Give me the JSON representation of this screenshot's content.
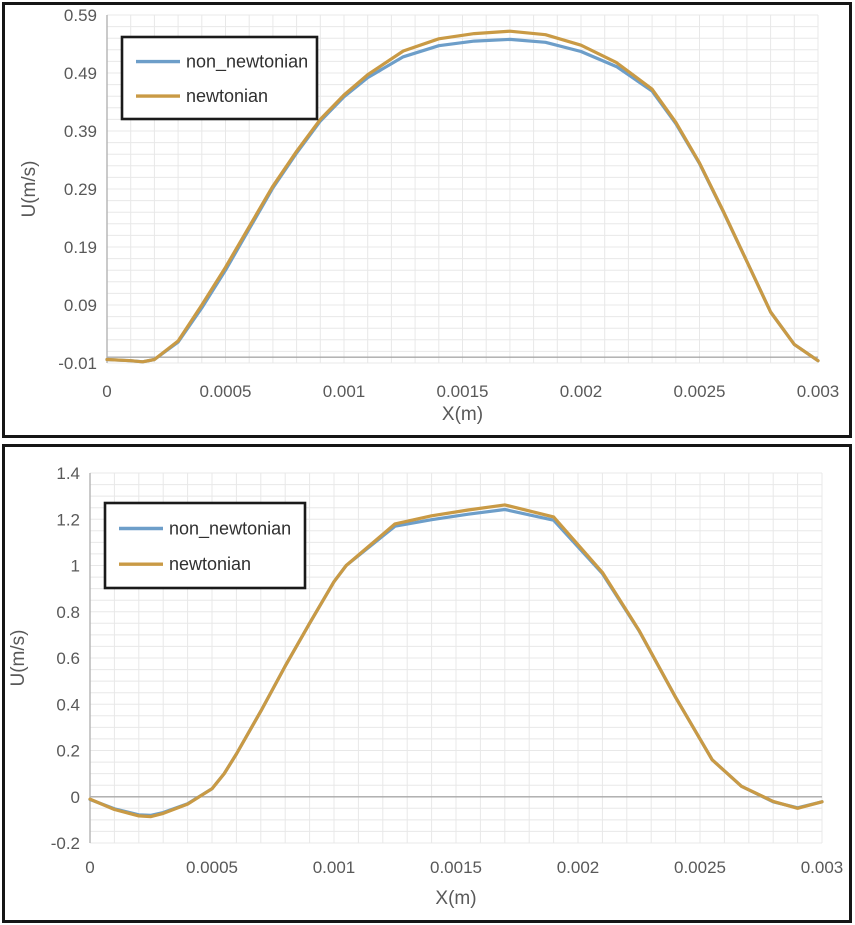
{
  "colors": {
    "non_newtonian": "#6D9EC9",
    "newtonian": "#C99A45",
    "grid": "#E8E8E8",
    "axis_line": "#B3B3B3",
    "zero_line": "#A9A9A9",
    "tick_text": "#595959",
    "legend_text": "#303030",
    "legend_border": "#1a1a1a",
    "panel_border": "#161616",
    "background": "#ffffff"
  },
  "chart_data": [
    {
      "type": "line",
      "title": "",
      "xlabel": "X(m)",
      "ylabel": "U(m/s)",
      "xlim": [
        0,
        0.003
      ],
      "ylim": [
        -0.01,
        0.59
      ],
      "x_tick_labels": [
        "0",
        "0.0005",
        "0.001",
        "0.0015",
        "0.002",
        "0.0025",
        "0.003"
      ],
      "x_tick_values": [
        0,
        0.0005,
        0.001,
        0.0015,
        0.002,
        0.0025,
        0.003
      ],
      "y_tick_labels": [
        "-0.01",
        "0.09",
        "0.19",
        "0.29",
        "0.39",
        "0.49",
        "0.59"
      ],
      "y_tick_values": [
        -0.01,
        0.09,
        0.19,
        0.29,
        0.39,
        0.49,
        0.59
      ],
      "x_minor_step": 0.0001,
      "y_minor_step": 0.02,
      "grid": true,
      "zero_line": 0,
      "legend_position": "inside-top-left",
      "legend_entries": [
        "non_newtonian",
        "newtonian"
      ],
      "series": [
        {
          "name": "non_newtonian",
          "points": [
            [
              0,
              -0.004
            ],
            [
              0.0001,
              -0.006
            ],
            [
              0.00015,
              -0.008
            ],
            [
              0.0002,
              -0.004
            ],
            [
              0.0003,
              0.026
            ],
            [
              0.0004,
              0.085
            ],
            [
              0.0005,
              0.15
            ],
            [
              0.0006,
              0.221
            ],
            [
              0.0007,
              0.292
            ],
            [
              0.0008,
              0.352
            ],
            [
              0.0009,
              0.407
            ],
            [
              0.001,
              0.449
            ],
            [
              0.0011,
              0.482
            ],
            [
              0.00125,
              0.518
            ],
            [
              0.0014,
              0.537
            ],
            [
              0.00155,
              0.545
            ],
            [
              0.0017,
              0.548
            ],
            [
              0.00185,
              0.543
            ],
            [
              0.002,
              0.527
            ],
            [
              0.00215,
              0.501
            ],
            [
              0.0023,
              0.459
            ],
            [
              0.0024,
              0.403
            ],
            [
              0.0025,
              0.334
            ],
            [
              0.0026,
              0.251
            ],
            [
              0.0027,
              0.165
            ],
            [
              0.0028,
              0.078
            ],
            [
              0.0029,
              0.022
            ],
            [
              0.003,
              -0.006
            ]
          ]
        },
        {
          "name": "newtonian",
          "points": [
            [
              0,
              -0.004
            ],
            [
              0.0001,
              -0.006
            ],
            [
              0.00015,
              -0.008
            ],
            [
              0.0002,
              -0.004
            ],
            [
              0.0003,
              0.028
            ],
            [
              0.0004,
              0.09
            ],
            [
              0.0005,
              0.155
            ],
            [
              0.0006,
              0.225
            ],
            [
              0.0007,
              0.295
            ],
            [
              0.0008,
              0.355
            ],
            [
              0.0009,
              0.41
            ],
            [
              0.001,
              0.452
            ],
            [
              0.0011,
              0.487
            ],
            [
              0.00125,
              0.528
            ],
            [
              0.0014,
              0.549
            ],
            [
              0.00155,
              0.558
            ],
            [
              0.0017,
              0.562
            ],
            [
              0.00185,
              0.556
            ],
            [
              0.002,
              0.538
            ],
            [
              0.00215,
              0.508
            ],
            [
              0.0023,
              0.462
            ],
            [
              0.0024,
              0.405
            ],
            [
              0.0025,
              0.335
            ],
            [
              0.0026,
              0.252
            ],
            [
              0.0027,
              0.165
            ],
            [
              0.0028,
              0.078
            ],
            [
              0.0029,
              0.022
            ],
            [
              0.003,
              -0.006
            ]
          ]
        }
      ]
    },
    {
      "type": "line",
      "title": "",
      "xlabel": "X(m)",
      "ylabel": "U(m/s)",
      "xlim": [
        0,
        0.003
      ],
      "ylim": [
        -0.2,
        1.4
      ],
      "x_tick_labels": [
        "0",
        "0.0005",
        "0.001",
        "0.0015",
        "0.002",
        "0.0025",
        "0.003"
      ],
      "x_tick_values": [
        0,
        0.0005,
        0.001,
        0.0015,
        0.002,
        0.0025,
        0.003
      ],
      "y_tick_labels": [
        "-0.2",
        "0",
        "0.2",
        "0.4",
        "0.6",
        "0.8",
        "1",
        "1.2",
        "1.4"
      ],
      "y_tick_values": [
        -0.2,
        0,
        0.2,
        0.4,
        0.6,
        0.8,
        1,
        1.2,
        1.4
      ],
      "x_minor_step": 0.0001,
      "y_minor_step": 0.05,
      "grid": true,
      "zero_line": 0,
      "legend_position": "inside-top-left",
      "legend_entries": [
        "non_newtonian",
        "newtonian"
      ],
      "series": [
        {
          "name": "non_newtonian",
          "points": [
            [
              0,
              -0.012
            ],
            [
              0.0001,
              -0.052
            ],
            [
              0.0002,
              -0.078
            ],
            [
              0.00025,
              -0.08
            ],
            [
              0.0003,
              -0.068
            ],
            [
              0.0004,
              -0.03
            ],
            [
              0.0005,
              0.035
            ],
            [
              0.00055,
              0.1
            ],
            [
              0.0006,
              0.185
            ],
            [
              0.0007,
              0.37
            ],
            [
              0.0008,
              0.565
            ],
            [
              0.0009,
              0.75
            ],
            [
              0.001,
              0.93
            ],
            [
              0.00105,
              1.0
            ],
            [
              0.00125,
              1.17
            ],
            [
              0.0014,
              1.198
            ],
            [
              0.00155,
              1.222
            ],
            [
              0.0017,
              1.242
            ],
            [
              0.0019,
              1.196
            ],
            [
              0.0021,
              0.965
            ],
            [
              0.00225,
              0.718
            ],
            [
              0.0024,
              0.43
            ],
            [
              0.00255,
              0.16
            ],
            [
              0.00267,
              0.045
            ],
            [
              0.0028,
              -0.022
            ],
            [
              0.0029,
              -0.048
            ],
            [
              0.003,
              -0.022
            ]
          ]
        },
        {
          "name": "newtonian",
          "points": [
            [
              0,
              -0.01
            ],
            [
              0.0001,
              -0.055
            ],
            [
              0.0002,
              -0.083
            ],
            [
              0.00025,
              -0.086
            ],
            [
              0.0003,
              -0.072
            ],
            [
              0.0004,
              -0.032
            ],
            [
              0.0005,
              0.035
            ],
            [
              0.00055,
              0.1
            ],
            [
              0.0006,
              0.185
            ],
            [
              0.0007,
              0.37
            ],
            [
              0.0008,
              0.565
            ],
            [
              0.0009,
              0.75
            ],
            [
              0.001,
              0.93
            ],
            [
              0.00105,
              1.0
            ],
            [
              0.00125,
              1.18
            ],
            [
              0.0014,
              1.215
            ],
            [
              0.00155,
              1.24
            ],
            [
              0.0017,
              1.262
            ],
            [
              0.0019,
              1.21
            ],
            [
              0.0021,
              0.97
            ],
            [
              0.00225,
              0.72
            ],
            [
              0.0024,
              0.43
            ],
            [
              0.00255,
              0.16
            ],
            [
              0.00267,
              0.045
            ],
            [
              0.0028,
              -0.02
            ],
            [
              0.0029,
              -0.05
            ],
            [
              0.003,
              -0.022
            ]
          ]
        }
      ]
    }
  ]
}
